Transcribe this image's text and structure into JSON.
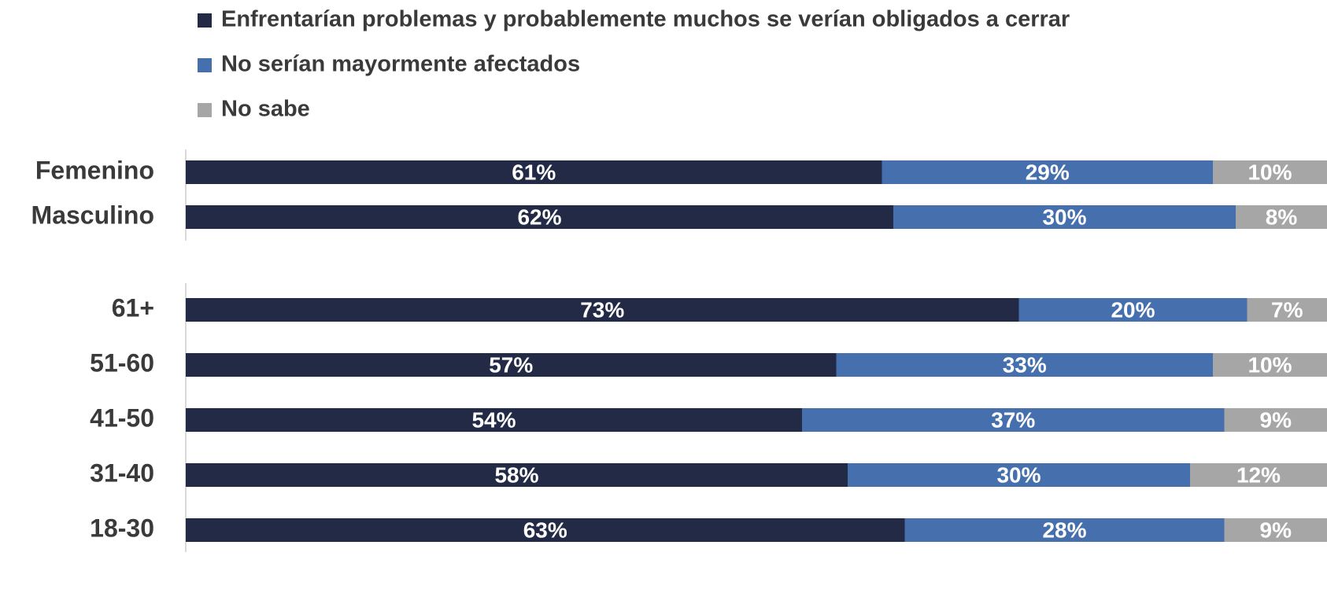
{
  "chart_data": {
    "type": "stacked_barh",
    "categories": [
      "Femenino",
      "Masculino",
      null,
      "61+",
      "51-60",
      "41-50",
      "31-40",
      "18-30"
    ],
    "series": [
      {
        "name": "Enfrentarían problemas y probablemente muchos se verían obligados a cerrar",
        "color": "#222a45",
        "values": [
          61,
          62,
          null,
          73,
          57,
          54,
          58,
          63
        ],
        "value_labels": [
          "61%",
          "62%",
          null,
          "73%",
          "57%",
          "54%",
          "58%",
          "63%"
        ]
      },
      {
        "name": "No serían mayormente afectados",
        "color": "#4570ad",
        "values": [
          29,
          30,
          null,
          20,
          33,
          37,
          30,
          28
        ],
        "value_labels": [
          "29%",
          "30%",
          null,
          "20%",
          "33%",
          "37%",
          "30%",
          "28%"
        ]
      },
      {
        "name": "No sabe",
        "color": "#a6a6a6",
        "values": [
          10,
          8,
          null,
          7,
          10,
          9,
          12,
          9
        ],
        "value_labels": [
          "10%",
          "8%",
          null,
          "7%",
          "10%",
          "9%",
          "12%",
          "9%"
        ]
      }
    ],
    "xlim": [
      0,
      100
    ],
    "legend": "top"
  }
}
